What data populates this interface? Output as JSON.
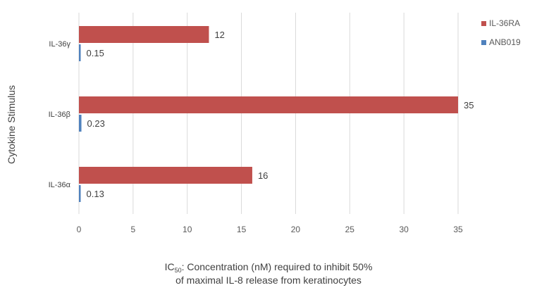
{
  "chart_data": {
    "type": "bar",
    "orientation": "horizontal",
    "categories": [
      "IL-36γ",
      "IL-36β",
      "IL-36α"
    ],
    "series": [
      {
        "name": "IL-36RA",
        "values": [
          12,
          35,
          16
        ],
        "color": "#c0504d",
        "labels": [
          "12",
          "35",
          "16"
        ]
      },
      {
        "name": "ANB019",
        "values": [
          0.15,
          0.23,
          0.13
        ],
        "color": "#4f81bd",
        "labels": [
          "0.15",
          "0.23",
          "0.13"
        ]
      }
    ],
    "xlim": [
      0,
      35
    ],
    "xticks": [
      0,
      5,
      10,
      15,
      20,
      25,
      30,
      35
    ],
    "ylabel": "Cytokine Stimulus",
    "xlabel_line1_prefix": "IC",
    "xlabel_line1_sub": "50",
    "xlabel_line1_rest": ": Concentration (nM) required to inhibit 50%",
    "xlabel_line2": "of maximal IL-8 release from keratinocytes",
    "legend_position": "top-right",
    "grid": "vertical"
  }
}
